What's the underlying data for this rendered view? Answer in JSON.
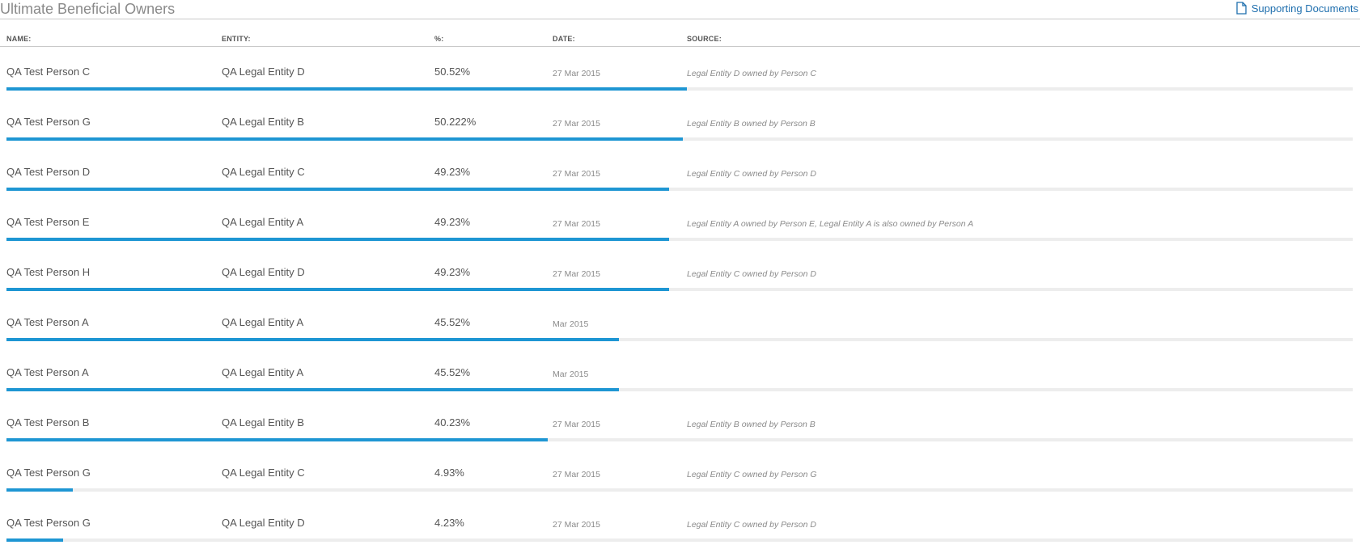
{
  "header": {
    "title": "Ultimate Beneficial Owners",
    "supporting_docs_label": "Supporting Documents",
    "doc_icon": "document-icon"
  },
  "columns": {
    "name": "NAME:",
    "entity": "ENTITY:",
    "percent": "%:",
    "date": "DATE:",
    "source": "SOURCE:"
  },
  "colors": {
    "accent": "#1e96d3",
    "link": "#1f6fae",
    "track": "#ededed"
  },
  "rows": [
    {
      "name": "QA Test Person C",
      "entity": "QA Legal Entity D",
      "percent": "50.52%",
      "share": 50.52,
      "date": "27 Mar 2015",
      "source": "Legal Entity D owned by Person C"
    },
    {
      "name": "QA Test Person G",
      "entity": "QA Legal Entity B",
      "percent": "50.222%",
      "share": 50.222,
      "date": "27 Mar 2015",
      "source": "Legal Entity B owned by Person B"
    },
    {
      "name": "QA Test Person D",
      "entity": "QA Legal Entity C",
      "percent": "49.23%",
      "share": 49.23,
      "date": "27 Mar 2015",
      "source": "Legal Entity C owned by Person D"
    },
    {
      "name": "QA Test Person E",
      "entity": "QA Legal Entity A",
      "percent": "49.23%",
      "share": 49.23,
      "date": "27 Mar 2015",
      "source": "Legal Entity A owned by Person E, Legal Entity A is also owned by Person A"
    },
    {
      "name": "QA Test Person H",
      "entity": "QA Legal Entity D",
      "percent": "49.23%",
      "share": 49.23,
      "date": "27 Mar 2015",
      "source": "Legal Entity C owned by Person D"
    },
    {
      "name": "QA Test Person A",
      "entity": "QA Legal Entity A",
      "percent": "45.52%",
      "share": 45.52,
      "date": "Mar 2015",
      "source": ""
    },
    {
      "name": "QA Test Person A",
      "entity": "QA Legal Entity A",
      "percent": "45.52%",
      "share": 45.52,
      "date": "Mar 2015",
      "source": ""
    },
    {
      "name": "QA Test Person B",
      "entity": "QA Legal Entity B",
      "percent": "40.23%",
      "share": 40.23,
      "date": "27 Mar 2015",
      "source": "Legal Entity B owned by Person B"
    },
    {
      "name": "QA Test Person G",
      "entity": "QA Legal Entity C",
      "percent": "4.93%",
      "share": 4.93,
      "date": "27 Mar 2015",
      "source": "Legal Entity C owned by Person G"
    },
    {
      "name": "QA Test Person G",
      "entity": "QA Legal Entity D",
      "percent": "4.23%",
      "share": 4.23,
      "date": "27 Mar 2015",
      "source": "Legal Entity C owned by Person D"
    }
  ]
}
